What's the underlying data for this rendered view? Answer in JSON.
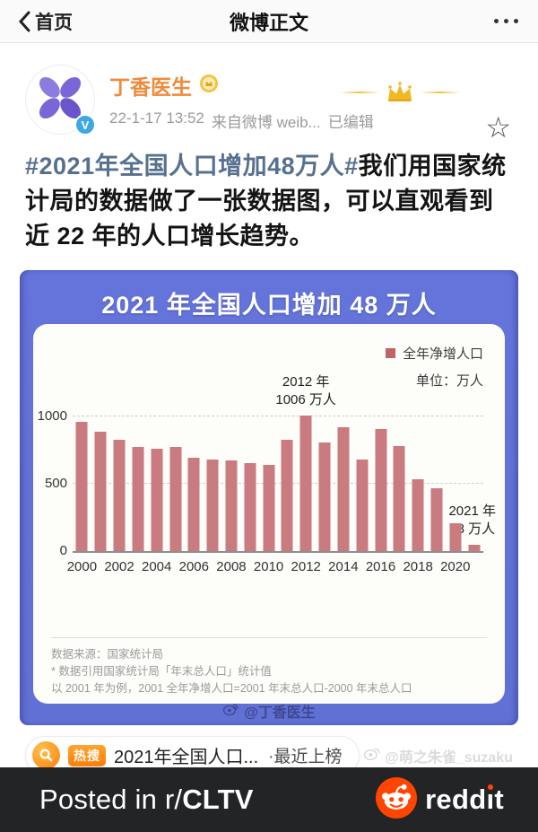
{
  "nav": {
    "back_label": "首页",
    "title": "微博正文"
  },
  "icons": {
    "star": "☆"
  },
  "post": {
    "author": "丁香医生",
    "time": "22-1-17 13:52",
    "source": "来自微博 weib...",
    "edited": "已编辑",
    "hashtag": "#2021年全国人口增加48万人#",
    "body": "我们用国家统计局的数据做了一张数据图，可以直观看到近 22 年的人口增长趋势。"
  },
  "chart_data": {
    "type": "bar",
    "title": "2021 年全国人口增加 48 万人",
    "legend_label": "全年净增人口",
    "unit_label": "单位：万人",
    "bar_color": "#c97b80",
    "legend_color": "#bd6468",
    "header_color": "#6272d8",
    "categories": [
      2000,
      2001,
      2002,
      2003,
      2004,
      2005,
      2006,
      2007,
      2008,
      2009,
      2010,
      2011,
      2012,
      2013,
      2014,
      2015,
      2016,
      2017,
      2018,
      2019,
      2020,
      2021
    ],
    "values": [
      957,
      884,
      826,
      774,
      761,
      768,
      692,
      681,
      673,
      652,
      641,
      825,
      1006,
      804,
      920,
      680,
      906,
      779,
      530,
      467,
      204,
      48
    ],
    "x_tick_labels": [
      "2000",
      "2002",
      "2004",
      "2006",
      "2008",
      "2010",
      "2012",
      "2014",
      "2016",
      "2018",
      "2020"
    ],
    "y_ticks": [
      0,
      500,
      1000
    ],
    "ylim": [
      0,
      1000
    ],
    "grid": "dashed horizontal",
    "legend_position": "top-right",
    "annotation_2012": {
      "line1": "2012 年",
      "line2": "1006 万人"
    },
    "annotation_2021": {
      "line1": "2021 年",
      "line2": "48 万人"
    },
    "footnotes": [
      "数据来源：国家统计局",
      "* 数据引用国家统计局「年末总人口」统计值",
      "以 2001 年为例，2001 全年净增人口=2001 年末总人口-2000 年末总人口"
    ],
    "watermark": "@丁香医生"
  },
  "hot_search": {
    "badge": "热搜",
    "title": "2021年全国人口...",
    "status": "·最近上榜",
    "watermark": "@萌之朱雀_suzaku"
  },
  "reddit_bar": {
    "posted_prefix": "Posted in r/",
    "subreddit": "CLTV",
    "brand_front": "redd",
    "brand_i": "ı",
    "brand_end": "t"
  }
}
